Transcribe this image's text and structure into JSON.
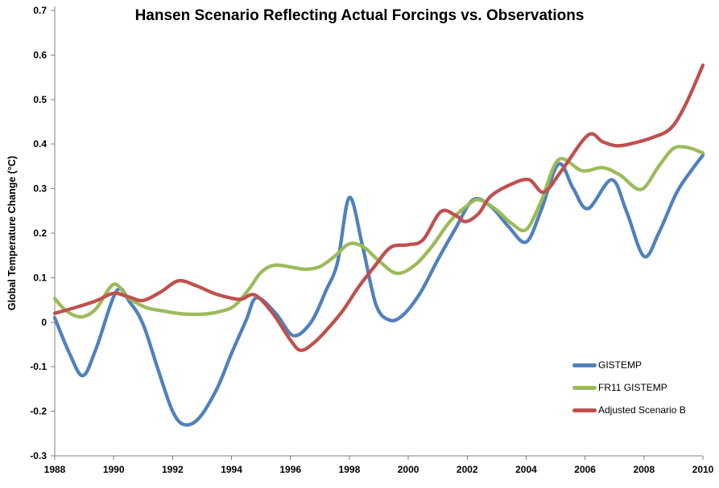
{
  "chart_data": {
    "type": "line",
    "title": "Hansen Scenario Reflecting Actual Forcings vs. Observations",
    "xlabel": "",
    "ylabel": "Global Temperature Change (°C)",
    "xlim": [
      1988,
      2010
    ],
    "ylim": [
      -0.3,
      0.7
    ],
    "grid": false,
    "legend_position": "inside-right",
    "axis_color": "#808080",
    "x_tick_values": [
      1988,
      1990,
      1992,
      1994,
      1996,
      1998,
      2000,
      2002,
      2004,
      2006,
      2008,
      2010
    ],
    "x_tick_labels": [
      "1988",
      "1990",
      "1992",
      "1994",
      "1996",
      "1998",
      "2000",
      "2002",
      "2004",
      "2006",
      "2008",
      "2010"
    ],
    "y_tick_values": [
      0.7,
      0.6,
      0.5,
      0.4,
      0.3,
      0.2,
      0.1,
      0,
      -0.1,
      -0.2,
      -0.3
    ],
    "y_tick_labels": [
      "0.7",
      "0.6",
      "0.5",
      "0.4",
      "0.3",
      "0.2",
      "0.1",
      "0",
      "-0.1",
      "-0.2",
      "-0.3"
    ],
    "series": [
      {
        "name": "GISTEMP",
        "color": "#4F81BD",
        "points": [
          [
            1988.0,
            0.01
          ],
          [
            1988.5,
            -0.07
          ],
          [
            1988.95,
            -0.12
          ],
          [
            1989.4,
            -0.06
          ],
          [
            1990.1,
            0.07
          ],
          [
            1990.55,
            0.045
          ],
          [
            1991.0,
            -0.005
          ],
          [
            1991.5,
            -0.105
          ],
          [
            1992.0,
            -0.2
          ],
          [
            1992.4,
            -0.23
          ],
          [
            1992.9,
            -0.215
          ],
          [
            1993.5,
            -0.15
          ],
          [
            1994.0,
            -0.07
          ],
          [
            1994.5,
            0.005
          ],
          [
            1994.85,
            0.055
          ],
          [
            1995.5,
            0.02
          ],
          [
            1996.1,
            -0.03
          ],
          [
            1996.7,
            0.0
          ],
          [
            1997.2,
            0.07
          ],
          [
            1997.6,
            0.135
          ],
          [
            1998.0,
            0.28
          ],
          [
            1998.45,
            0.17
          ],
          [
            1998.9,
            0.04
          ],
          [
            1999.35,
            0.005
          ],
          [
            1999.8,
            0.015
          ],
          [
            2000.4,
            0.065
          ],
          [
            2001.0,
            0.14
          ],
          [
            2001.6,
            0.21
          ],
          [
            2002.2,
            0.275
          ],
          [
            2002.8,
            0.26
          ],
          [
            2003.4,
            0.215
          ],
          [
            2004.0,
            0.18
          ],
          [
            2004.5,
            0.25
          ],
          [
            2005.1,
            0.355
          ],
          [
            2005.6,
            0.3
          ],
          [
            2006.1,
            0.255
          ],
          [
            2006.9,
            0.32
          ],
          [
            2007.4,
            0.25
          ],
          [
            2008.0,
            0.148
          ],
          [
            2008.5,
            0.2
          ],
          [
            2009.1,
            0.29
          ],
          [
            2009.6,
            0.34
          ],
          [
            2010.0,
            0.375
          ]
        ]
      },
      {
        "name": "FR11 GISTEMP",
        "color": "#9BBB59",
        "points": [
          [
            1988.0,
            0.053
          ],
          [
            1988.4,
            0.025
          ],
          [
            1988.9,
            0.012
          ],
          [
            1989.4,
            0.03
          ],
          [
            1990.0,
            0.085
          ],
          [
            1990.5,
            0.055
          ],
          [
            1991.1,
            0.033
          ],
          [
            1991.7,
            0.025
          ],
          [
            1992.3,
            0.019
          ],
          [
            1993.0,
            0.018
          ],
          [
            1993.6,
            0.024
          ],
          [
            1994.1,
            0.037
          ],
          [
            1994.6,
            0.075
          ],
          [
            1995.0,
            0.112
          ],
          [
            1995.45,
            0.128
          ],
          [
            1996.0,
            0.124
          ],
          [
            1996.5,
            0.119
          ],
          [
            1997.0,
            0.125
          ],
          [
            1997.5,
            0.148
          ],
          [
            1998.0,
            0.176
          ],
          [
            1998.5,
            0.168
          ],
          [
            1999.0,
            0.138
          ],
          [
            1999.6,
            0.11
          ],
          [
            2000.2,
            0.127
          ],
          [
            2000.8,
            0.17
          ],
          [
            2001.4,
            0.225
          ],
          [
            2002.0,
            0.262
          ],
          [
            2002.4,
            0.275
          ],
          [
            2003.0,
            0.252
          ],
          [
            2003.5,
            0.222
          ],
          [
            2004.0,
            0.208
          ],
          [
            2004.5,
            0.27
          ],
          [
            2005.1,
            0.365
          ],
          [
            2005.9,
            0.34
          ],
          [
            2006.6,
            0.347
          ],
          [
            2007.2,
            0.33
          ],
          [
            2007.9,
            0.298
          ],
          [
            2008.5,
            0.35
          ],
          [
            2009.0,
            0.39
          ],
          [
            2009.5,
            0.392
          ],
          [
            2010.0,
            0.38
          ]
        ]
      },
      {
        "name": "Adjusted Scenario B",
        "color": "#C0504D",
        "points": [
          [
            1988.0,
            0.02
          ],
          [
            1988.7,
            0.033
          ],
          [
            1989.4,
            0.048
          ],
          [
            1990.0,
            0.065
          ],
          [
            1990.5,
            0.057
          ],
          [
            1991.0,
            0.049
          ],
          [
            1991.6,
            0.068
          ],
          [
            1992.2,
            0.093
          ],
          [
            1992.8,
            0.082
          ],
          [
            1993.4,
            0.065
          ],
          [
            1994.0,
            0.054
          ],
          [
            1994.35,
            0.052
          ],
          [
            1994.8,
            0.061
          ],
          [
            1995.4,
            0.02
          ],
          [
            1996.0,
            -0.04
          ],
          [
            1996.35,
            -0.063
          ],
          [
            1996.8,
            -0.046
          ],
          [
            1997.3,
            -0.012
          ],
          [
            1997.8,
            0.028
          ],
          [
            1998.3,
            0.078
          ],
          [
            1998.85,
            0.125
          ],
          [
            1999.4,
            0.168
          ],
          [
            2000.0,
            0.174
          ],
          [
            2000.5,
            0.185
          ],
          [
            2001.1,
            0.248
          ],
          [
            2001.6,
            0.24
          ],
          [
            2001.95,
            0.226
          ],
          [
            2002.4,
            0.245
          ],
          [
            2002.8,
            0.283
          ],
          [
            2003.5,
            0.31
          ],
          [
            2004.1,
            0.32
          ],
          [
            2004.6,
            0.292
          ],
          [
            2005.2,
            0.34
          ],
          [
            2006.1,
            0.42
          ],
          [
            2006.6,
            0.405
          ],
          [
            2007.1,
            0.396
          ],
          [
            2007.7,
            0.403
          ],
          [
            2008.3,
            0.415
          ],
          [
            2008.9,
            0.435
          ],
          [
            2009.4,
            0.487
          ],
          [
            2010.0,
            0.577
          ]
        ]
      }
    ]
  }
}
